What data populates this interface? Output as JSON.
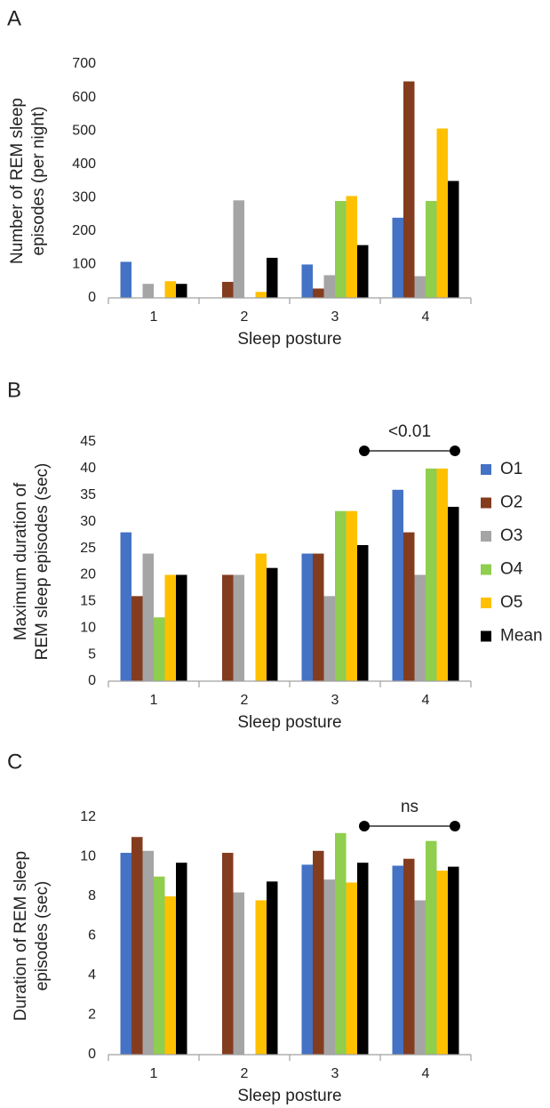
{
  "chart_data": [
    {
      "type": "bar",
      "label": "A",
      "xlabel": "Sleep posture",
      "ylabel": [
        "Number of REM sleep",
        "episodes  (per night)"
      ],
      "categories": [
        "1",
        "2",
        "3",
        "4"
      ],
      "series": [
        {
          "color": "#4472c4",
          "values": [
            108,
            0,
            100,
            240
          ]
        },
        {
          "color": "#843c1f",
          "values": [
            0,
            48,
            28,
            648
          ]
        },
        {
          "color": "#a5a5a5",
          "values": [
            42,
            292,
            68,
            65
          ]
        },
        {
          "color": "#8fce4e",
          "values": [
            0,
            0,
            290,
            290
          ]
        },
        {
          "color": "#ffc000",
          "values": [
            50,
            18,
            305,
            507
          ]
        },
        {
          "color": "#000000",
          "values": [
            42,
            120,
            158,
            350
          ]
        }
      ],
      "ylim": [
        0,
        700
      ],
      "yticks": [
        0,
        100,
        200,
        300,
        400,
        500,
        600,
        700
      ]
    },
    {
      "type": "bar",
      "label": "B",
      "xlabel": "Sleep posture",
      "ylabel": [
        "Maximum duration of",
        "REM sleep episodes (sec)"
      ],
      "categories": [
        "1",
        "2",
        "3",
        "4"
      ],
      "series": [
        {
          "name": "O1",
          "color": "#4472c4",
          "values": [
            28,
            0,
            24,
            36
          ]
        },
        {
          "name": "O2",
          "color": "#843c1f",
          "values": [
            16,
            20,
            24,
            28
          ]
        },
        {
          "name": "O3",
          "color": "#a5a5a5",
          "values": [
            24,
            20,
            16,
            20
          ]
        },
        {
          "name": "O4",
          "color": "#8fce4e",
          "values": [
            12,
            0,
            32,
            40
          ]
        },
        {
          "name": "O5",
          "color": "#ffc000",
          "values": [
            20,
            24,
            32,
            40
          ]
        },
        {
          "name": "Mean",
          "color": "#000000",
          "values": [
            20,
            21.3,
            25.6,
            32.8
          ]
        }
      ],
      "ylim": [
        0,
        45
      ],
      "yticks": [
        0,
        5,
        10,
        15,
        20,
        25,
        30,
        35,
        40,
        45
      ],
      "legend": "right",
      "annotation": {
        "text": "<0.01",
        "between": [
          "3",
          "4"
        ]
      }
    },
    {
      "type": "bar",
      "label": "C",
      "xlabel": "Sleep posture",
      "ylabel": [
        "Duration of REM sleep",
        "episodes (sec)"
      ],
      "categories": [
        "1",
        "2",
        "3",
        "4"
      ],
      "series": [
        {
          "color": "#4472c4",
          "values": [
            10.2,
            0,
            9.6,
            9.55
          ]
        },
        {
          "color": "#843c1f",
          "values": [
            11.0,
            10.2,
            10.3,
            9.9
          ]
        },
        {
          "color": "#a5a5a5",
          "values": [
            10.3,
            8.2,
            8.85,
            7.8
          ]
        },
        {
          "color": "#8fce4e",
          "values": [
            9.0,
            0,
            11.2,
            10.8
          ]
        },
        {
          "color": "#ffc000",
          "values": [
            8.0,
            7.8,
            8.7,
            9.3
          ]
        },
        {
          "color": "#000000",
          "values": [
            9.7,
            8.75,
            9.7,
            9.5
          ]
        }
      ],
      "ylim": [
        0,
        12
      ],
      "yticks": [
        0,
        2,
        4,
        6,
        8,
        10,
        12
      ],
      "annotation": {
        "text": "ns",
        "between": [
          "3",
          "4"
        ]
      }
    }
  ]
}
